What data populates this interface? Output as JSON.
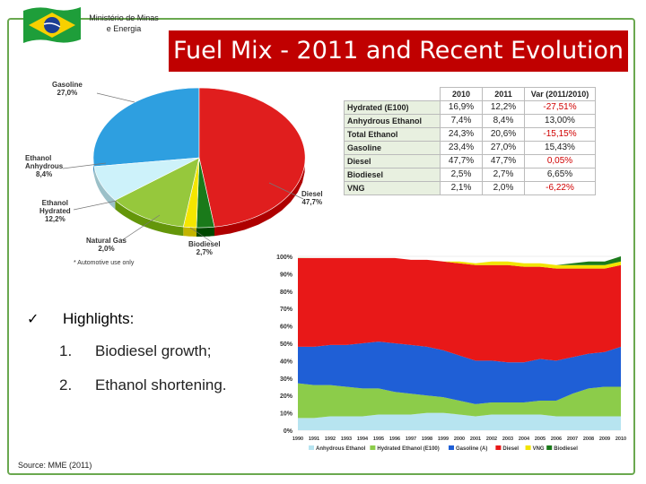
{
  "header": {
    "ministry": "Ministério de Minas e Energia",
    "title": "Fuel Mix - 2011 and Recent Evolution"
  },
  "pie": {
    "footnote": "* Automotive use only",
    "slices": [
      {
        "name": "Gasoline",
        "pct": "27,0%",
        "value": 27.0,
        "color": "#2e9fe0"
      },
      {
        "name": "Diesel",
        "pct": "47,7%",
        "value": 47.7,
        "color": "#e01e1e"
      },
      {
        "name": "Biodiesel",
        "pct": "2,7%",
        "value": 2.7,
        "color": "#1a7a1a"
      },
      {
        "name": "Natural Gas",
        "pct": "2,0%",
        "value": 2.0,
        "color": "#f5e600"
      },
      {
        "name": "Ethanol Hydrated",
        "pct": "12,2%",
        "value": 12.2,
        "color": "#96c83c"
      },
      {
        "name": "Ethanol Anhydrous",
        "pct": "8,4%",
        "value": 8.4,
        "color": "#cdf2fa"
      }
    ],
    "labels": {
      "gasoline": [
        "Gasoline",
        "27,0%"
      ],
      "ethanol_anhydrous": [
        "Ethanol",
        "Anhydrous",
        "8,4%"
      ],
      "ethanol_hydrated": [
        "Ethanol",
        "Hydrated",
        "12,2%"
      ],
      "natural_gas": [
        "Natural Gas",
        "2,0%"
      ],
      "biodiesel": [
        "Biodiesel",
        "2,7%"
      ],
      "diesel": [
        "Diesel",
        "47,7%"
      ]
    }
  },
  "table": {
    "headers": [
      "",
      "2010",
      "2011",
      "Var (2011/2010)"
    ],
    "rows": [
      {
        "label": "Hydrated (E100)",
        "v2010": "16,9%",
        "v2011": "12,2%",
        "var": "-27,51%",
        "var_color": "#d00000"
      },
      {
        "label": "Anhydrous Ethanol",
        "v2010": "7,4%",
        "v2011": "8,4%",
        "var": "13,00%",
        "var_color": "#222222"
      },
      {
        "label": "Total Ethanol",
        "v2010": "24,3%",
        "v2011": "20,6%",
        "var": "-15,15%",
        "var_color": "#d00000"
      },
      {
        "label": "Gasoline",
        "v2010": "23,4%",
        "v2011": "27,0%",
        "var": "15,43%",
        "var_color": "#222222"
      },
      {
        "label": "Diesel",
        "v2010": "47,7%",
        "v2011": "47,7%",
        "var": "0,05%",
        "var_color": "#d00000"
      },
      {
        "label": "Biodiesel",
        "v2010": "2,5%",
        "v2011": "2,7%",
        "var": "6,65%",
        "var_color": "#222222"
      },
      {
        "label": "VNG",
        "v2010": "2,1%",
        "v2011": "2,0%",
        "var": "-6,22%",
        "var_color": "#d00000"
      }
    ]
  },
  "highlights": {
    "check": "✓",
    "title": "Highlights:",
    "items": [
      {
        "num": "1.",
        "text": "Biodiesel growth;"
      },
      {
        "num": "2.",
        "text": "Ethanol shortening."
      }
    ]
  },
  "source": "Source: MME (2011)",
  "chart_data": {
    "type": "area",
    "stacked": true,
    "x": [
      "1990",
      "1991",
      "1992",
      "1993",
      "1994",
      "1995",
      "1996",
      "1997",
      "1998",
      "1999",
      "2000",
      "2001",
      "2002",
      "2003",
      "2004",
      "2005",
      "2006",
      "2007",
      "2008",
      "2009",
      "2010"
    ],
    "ylim": [
      0,
      100
    ],
    "yticks": [
      "0%",
      "10%",
      "20%",
      "30%",
      "40%",
      "50%",
      "60%",
      "70%",
      "80%",
      "90%",
      "100%"
    ],
    "series": [
      {
        "name": "Anhydrous Ethanol",
        "color": "#b7e4f0",
        "values": [
          7,
          7,
          8,
          8,
          8,
          9,
          9,
          9,
          10,
          10,
          9,
          8,
          9,
          9,
          9,
          9,
          8,
          8,
          8,
          8,
          8
        ]
      },
      {
        "name": "Hydrated Ethanol (E100)",
        "color": "#8ccc4a",
        "values": [
          20,
          19,
          18,
          17,
          16,
          15,
          13,
          12,
          10,
          9,
          8,
          7,
          7,
          7,
          7,
          8,
          9,
          13,
          16,
          17,
          17
        ]
      },
      {
        "name": "Gasoline (A)",
        "color": "#1f5fd6",
        "values": [
          21,
          22,
          23,
          24,
          26,
          27,
          28,
          28,
          28,
          27,
          26,
          25,
          24,
          23,
          23,
          24,
          23,
          21,
          20,
          20,
          23
        ]
      },
      {
        "name": "Diesel",
        "color": "#e81818",
        "values": [
          51,
          51,
          50,
          50,
          49,
          48,
          49,
          49,
          50,
          51,
          53,
          55,
          55,
          56,
          55,
          53,
          53,
          51,
          49,
          48,
          47
        ]
      },
      {
        "name": "VNG",
        "color": "#f2e400",
        "values": [
          0,
          0,
          0,
          0,
          0,
          0,
          0,
          0,
          0,
          0,
          1,
          1,
          2,
          2,
          2,
          2,
          2,
          2,
          2,
          2,
          2
        ]
      },
      {
        "name": "Biodiesel",
        "color": "#1a7a1a",
        "values": [
          0,
          0,
          0,
          0,
          0,
          0,
          0,
          0,
          0,
          0,
          0,
          0,
          0,
          0,
          0,
          0,
          0,
          1,
          2,
          2,
          3
        ]
      }
    ]
  }
}
